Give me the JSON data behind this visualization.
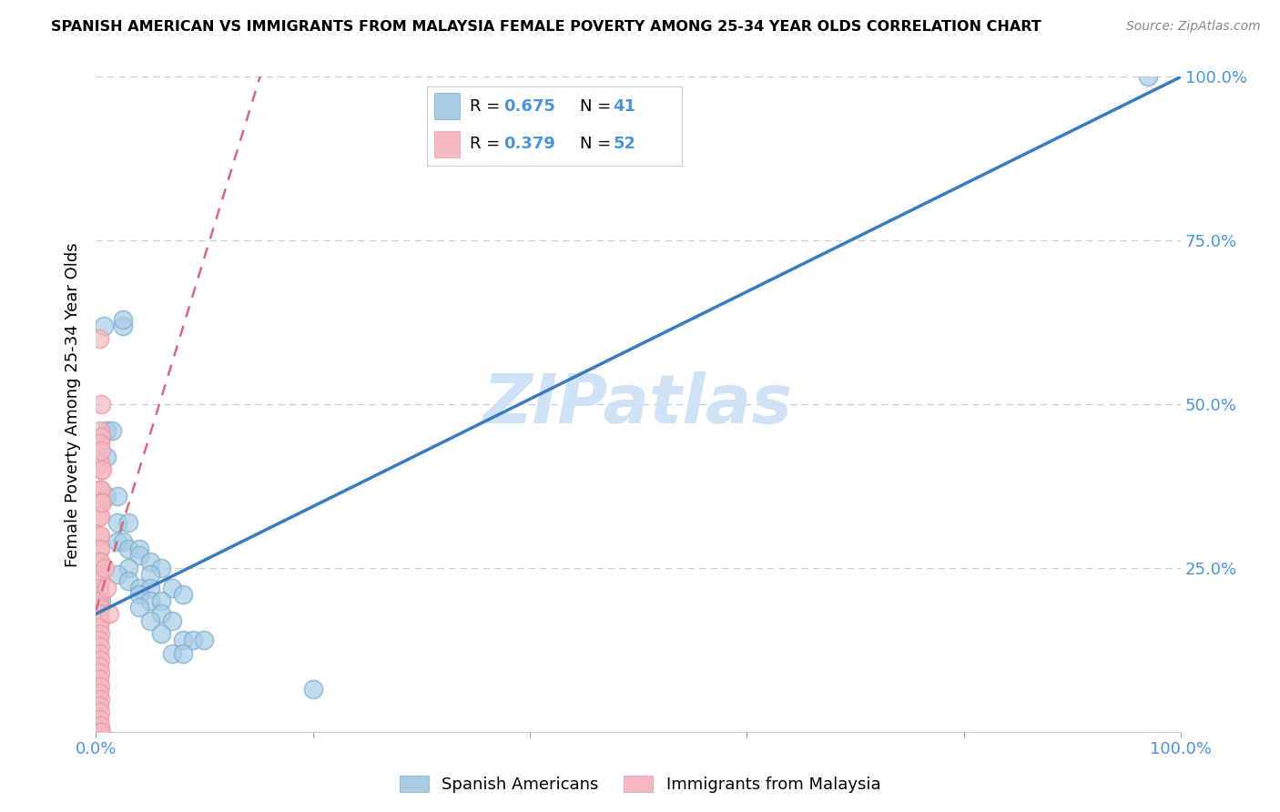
{
  "title": "SPANISH AMERICAN VS IMMIGRANTS FROM MALAYSIA FEMALE POVERTY AMONG 25-34 YEAR OLDS CORRELATION CHART",
  "source": "Source: ZipAtlas.com",
  "ylabel": "Female Poverty Among 25-34 Year Olds",
  "xlim": [
    0,
    1.0
  ],
  "ylim": [
    0,
    1.0
  ],
  "legend_r1": "R = 0.675",
  "legend_n1": "N = 41",
  "legend_r2": "R = 0.379",
  "legend_n2": "N = 52",
  "blue_color": "#a8cce4",
  "pink_color": "#f4b8c0",
  "blue_edge_color": "#7aaecf",
  "pink_edge_color": "#e899a4",
  "blue_line_color": "#3a7abf",
  "pink_line_color": "#d46a7a",
  "label_color": "#4d94d6",
  "grid_color": "#c0d4e8",
  "watermark_color": "#c8dff5",
  "title_fontsize": 11.5,
  "source_fontsize": 10,
  "tick_fontsize": 13,
  "ylabel_fontsize": 13,
  "blue_line_x": [
    0.0,
    1.0
  ],
  "blue_line_y": [
    0.18,
    1.0
  ],
  "pink_line_x": [
    0.0,
    0.155
  ],
  "pink_line_y": [
    0.185,
    1.02
  ],
  "blue_scatter": [
    [
      0.007,
      0.62
    ],
    [
      0.025,
      0.62
    ],
    [
      0.025,
      0.63
    ],
    [
      0.01,
      0.46
    ],
    [
      0.015,
      0.46
    ],
    [
      0.01,
      0.42
    ],
    [
      0.01,
      0.36
    ],
    [
      0.02,
      0.36
    ],
    [
      0.02,
      0.32
    ],
    [
      0.03,
      0.32
    ],
    [
      0.02,
      0.29
    ],
    [
      0.025,
      0.29
    ],
    [
      0.03,
      0.28
    ],
    [
      0.04,
      0.28
    ],
    [
      0.04,
      0.27
    ],
    [
      0.05,
      0.26
    ],
    [
      0.03,
      0.25
    ],
    [
      0.06,
      0.25
    ],
    [
      0.02,
      0.24
    ],
    [
      0.05,
      0.24
    ],
    [
      0.03,
      0.23
    ],
    [
      0.04,
      0.22
    ],
    [
      0.05,
      0.22
    ],
    [
      0.07,
      0.22
    ],
    [
      0.04,
      0.21
    ],
    [
      0.08,
      0.21
    ],
    [
      0.05,
      0.2
    ],
    [
      0.06,
      0.2
    ],
    [
      0.04,
      0.19
    ],
    [
      0.06,
      0.18
    ],
    [
      0.05,
      0.17
    ],
    [
      0.07,
      0.17
    ],
    [
      0.06,
      0.15
    ],
    [
      0.08,
      0.14
    ],
    [
      0.09,
      0.14
    ],
    [
      0.1,
      0.14
    ],
    [
      0.07,
      0.12
    ],
    [
      0.08,
      0.12
    ],
    [
      0.2,
      0.065
    ],
    [
      0.97,
      1.0
    ],
    [
      0.005,
      0.2
    ]
  ],
  "pink_scatter": [
    [
      0.003,
      0.6
    ],
    [
      0.004,
      0.46
    ],
    [
      0.005,
      0.45
    ],
    [
      0.004,
      0.44
    ],
    [
      0.004,
      0.41
    ],
    [
      0.005,
      0.4
    ],
    [
      0.006,
      0.4
    ],
    [
      0.003,
      0.37
    ],
    [
      0.004,
      0.37
    ],
    [
      0.005,
      0.37
    ],
    [
      0.003,
      0.35
    ],
    [
      0.004,
      0.35
    ],
    [
      0.003,
      0.33
    ],
    [
      0.004,
      0.33
    ],
    [
      0.003,
      0.3
    ],
    [
      0.004,
      0.3
    ],
    [
      0.003,
      0.28
    ],
    [
      0.004,
      0.28
    ],
    [
      0.003,
      0.26
    ],
    [
      0.004,
      0.26
    ],
    [
      0.003,
      0.24
    ],
    [
      0.004,
      0.23
    ],
    [
      0.003,
      0.22
    ],
    [
      0.004,
      0.21
    ],
    [
      0.003,
      0.2
    ],
    [
      0.004,
      0.19
    ],
    [
      0.003,
      0.18
    ],
    [
      0.004,
      0.17
    ],
    [
      0.003,
      0.16
    ],
    [
      0.004,
      0.15
    ],
    [
      0.003,
      0.14
    ],
    [
      0.004,
      0.13
    ],
    [
      0.003,
      0.12
    ],
    [
      0.004,
      0.11
    ],
    [
      0.003,
      0.1
    ],
    [
      0.004,
      0.09
    ],
    [
      0.003,
      0.08
    ],
    [
      0.004,
      0.07
    ],
    [
      0.003,
      0.06
    ],
    [
      0.004,
      0.05
    ],
    [
      0.003,
      0.04
    ],
    [
      0.004,
      0.03
    ],
    [
      0.003,
      0.02
    ],
    [
      0.004,
      0.01
    ],
    [
      0.003,
      0.0
    ],
    [
      0.005,
      0.5
    ],
    [
      0.005,
      0.43
    ],
    [
      0.006,
      0.35
    ],
    [
      0.008,
      0.25
    ],
    [
      0.01,
      0.22
    ],
    [
      0.012,
      0.18
    ],
    [
      0.005,
      0.0
    ]
  ]
}
